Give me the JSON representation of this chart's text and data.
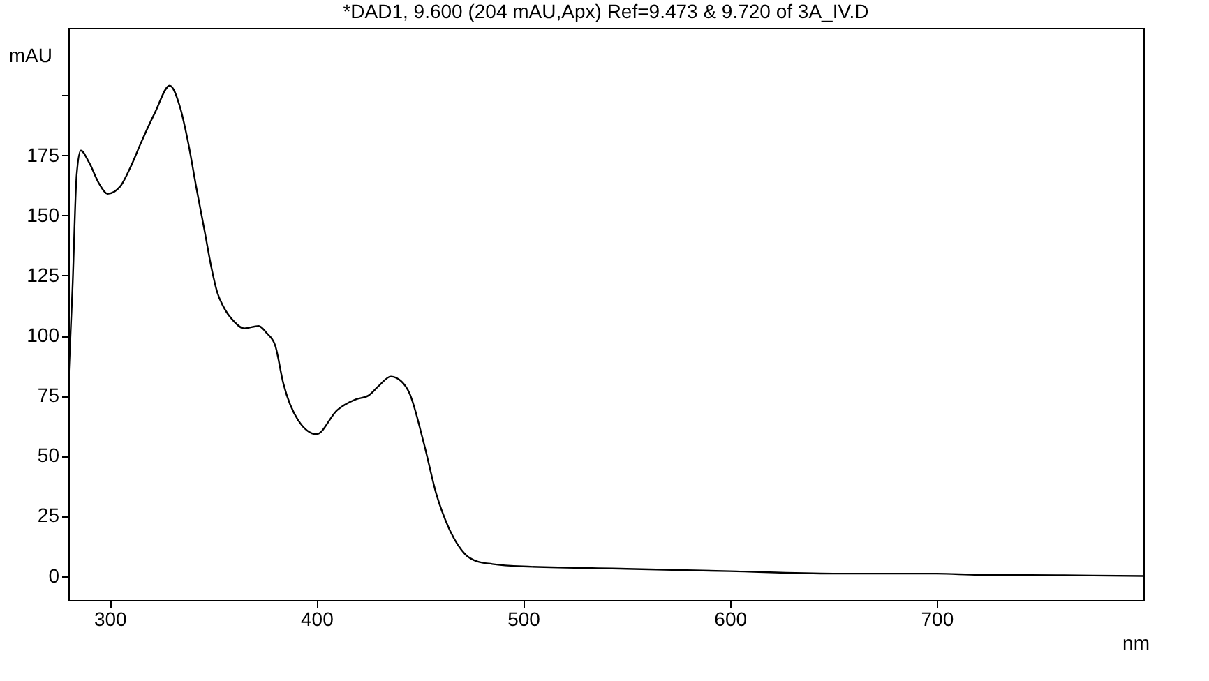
{
  "chart_data": {
    "type": "line",
    "title": "*DAD1, 9.600 (204 mAU,Apx) Ref=9.473 & 9.720 of 3A_IV.D",
    "xlabel": "nm",
    "ylabel": "mAU",
    "x": [
      280,
      282,
      284,
      286,
      290,
      295,
      299,
      305,
      310,
      315,
      322,
      329,
      334,
      338,
      342,
      346,
      349,
      352,
      355,
      360,
      365,
      372,
      376,
      380,
      384,
      391,
      400,
      410,
      419,
      425,
      430,
      436,
      441,
      445,
      452,
      458,
      464,
      472,
      478,
      485,
      500,
      550,
      600,
      650,
      700,
      720,
      760,
      800
    ],
    "series": [
      {
        "color": "#000000",
        "values": [
          80,
          120,
          167,
          177,
          172,
          163,
          159,
          162,
          170,
          180,
          193,
          204,
          195,
          180,
          161,
          143,
          129,
          118,
          112,
          106,
          103,
          104,
          101,
          96,
          80,
          65,
          59,
          69,
          73.5,
          75,
          79,
          83,
          81,
          76,
          55,
          34,
          20,
          9,
          6,
          5,
          4,
          3,
          2,
          1,
          1,
          0.5,
          0.3,
          0
        ]
      }
    ],
    "xlim": [
      280,
      800
    ],
    "xticks": [
      300,
      400,
      500,
      600,
      700
    ],
    "ylim": [
      -10,
      228
    ],
    "yticks": [
      0,
      25,
      50,
      75,
      100,
      125,
      150,
      175,
      {
        "value": 200,
        "label": null
      }
    ],
    "grid": false,
    "marker": "none",
    "line_style": "solid"
  }
}
